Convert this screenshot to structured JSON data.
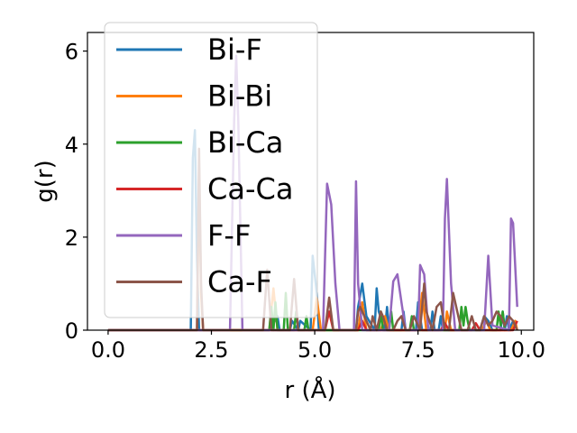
{
  "chart_data": {
    "type": "line",
    "xlabel": "r (Å)",
    "ylabel": "g(r)",
    "xlim": [
      -0.5,
      10.3
    ],
    "ylim": [
      0,
      6.4
    ],
    "xticks": [
      0.0,
      2.5,
      5.0,
      7.5,
      10.0
    ],
    "xtick_labels": [
      "0.0",
      "2.5",
      "5.0",
      "7.5",
      "10.0"
    ],
    "yticks": [
      0,
      2,
      4,
      6
    ],
    "ytick_labels": [
      "0",
      "2",
      "4",
      "6"
    ],
    "grid": false,
    "legend_position": "upper-left",
    "series": [
      {
        "name": "Bi-F",
        "color": "#1f77b4",
        "x": [
          0.0,
          2.0,
          2.05,
          2.1,
          2.15,
          2.2,
          3.9,
          4.1,
          4.15,
          4.4,
          4.45,
          4.6,
          4.65,
          4.9,
          4.95,
          5.05,
          5.1,
          6.0,
          6.05,
          6.15,
          6.25,
          6.45,
          6.5,
          6.55,
          6.7,
          6.75,
          6.8,
          7.1,
          7.15,
          7.2,
          7.45,
          7.5,
          7.6,
          7.8,
          7.85,
          7.9,
          8.0,
          8.05,
          8.1,
          9.0,
          9.1,
          9.2,
          9.3,
          9.5,
          9.55,
          9.6,
          9.65,
          9.7,
          9.8,
          9.9
        ],
        "y": [
          0.0,
          0.0,
          3.7,
          4.3,
          1.5,
          0.0,
          0.0,
          0.3,
          0.0,
          0.0,
          0.2,
          0.0,
          0.2,
          0.0,
          1.6,
          0.8,
          0.0,
          0.0,
          0.5,
          1.0,
          0.3,
          0.0,
          0.9,
          0.4,
          0.0,
          0.5,
          0.0,
          0.0,
          0.4,
          0.0,
          0.0,
          0.6,
          0.0,
          0.0,
          0.4,
          0.0,
          0.0,
          0.3,
          0.0,
          0.0,
          0.3,
          0.2,
          0.0,
          0.0,
          0.4,
          0.0,
          0.3,
          0.0,
          0.2,
          0.0
        ]
      },
      {
        "name": "Bi-Bi",
        "color": "#ff7f0e",
        "x": [
          0.0,
          2.15,
          2.2,
          2.25,
          2.3,
          3.9,
          4.0,
          4.1,
          4.95,
          5.05,
          5.15,
          6.05,
          6.15,
          6.25,
          6.6,
          6.7,
          6.8,
          7.5,
          7.6,
          7.7,
          8.15,
          8.2,
          8.3,
          9.05,
          9.15,
          9.25,
          9.75,
          9.85,
          9.9
        ],
        "y": [
          0.0,
          0.0,
          3.5,
          0.8,
          0.0,
          0.0,
          0.9,
          0.0,
          0.0,
          0.7,
          0.0,
          0.0,
          0.6,
          0.0,
          0.0,
          0.3,
          0.0,
          0.0,
          0.8,
          0.0,
          0.0,
          0.4,
          0.0,
          0.0,
          0.2,
          0.0,
          0.0,
          0.2,
          0.0
        ]
      },
      {
        "name": "Bi-Ca",
        "color": "#2ca02c",
        "x": [
          0.0,
          3.9,
          3.95,
          4.0,
          4.05,
          4.1,
          4.25,
          4.3,
          4.35,
          4.5,
          4.55,
          4.6,
          4.75,
          4.8,
          4.85,
          6.55,
          6.6,
          6.65,
          6.8,
          6.85,
          6.9,
          7.3,
          7.35,
          7.4,
          8.5,
          8.55,
          8.6,
          8.65,
          8.7,
          8.75,
          9.4,
          9.45,
          9.5,
          9.55,
          9.6
        ],
        "y": [
          0.0,
          0.0,
          0.5,
          0.0,
          0.6,
          0.0,
          0.0,
          0.8,
          0.0,
          0.0,
          0.4,
          0.0,
          0.0,
          0.3,
          0.0,
          0.0,
          0.4,
          0.0,
          0.0,
          0.4,
          0.0,
          0.0,
          0.3,
          0.0,
          0.0,
          0.5,
          0.1,
          0.5,
          0.2,
          0.0,
          0.0,
          0.4,
          0.1,
          0.4,
          0.0
        ]
      },
      {
        "name": "Ca-Ca",
        "color": "#d62728",
        "x": [
          0.0,
          5.25,
          5.35,
          5.45,
          6.05,
          6.15,
          6.25,
          8.05,
          8.15,
          8.25,
          8.8,
          8.9,
          9.0,
          9.8,
          9.9
        ],
        "y": [
          0.0,
          0.0,
          0.4,
          0.0,
          0.0,
          0.2,
          0.0,
          0.0,
          0.15,
          0.0,
          0.0,
          0.15,
          0.0,
          0.0,
          0.2
        ]
      },
      {
        "name": "F-F",
        "color": "#9467bd",
        "x": [
          0.0,
          2.95,
          3.05,
          3.1,
          3.15,
          3.25,
          5.2,
          5.3,
          5.4,
          5.5,
          5.6,
          5.95,
          6.0,
          6.05,
          6.15,
          6.8,
          6.9,
          7.0,
          7.1,
          7.2,
          7.5,
          7.55,
          7.65,
          7.75,
          8.1,
          8.15,
          8.2,
          8.3,
          8.4,
          9.1,
          9.2,
          9.3,
          9.7,
          9.75,
          9.8,
          9.9
        ],
        "y": [
          0.0,
          0.0,
          4.5,
          5.9,
          4.5,
          0.0,
          0.0,
          3.15,
          2.7,
          1.0,
          0.0,
          0.0,
          3.2,
          1.0,
          0.0,
          0.0,
          1.05,
          1.2,
          0.6,
          0.0,
          0.0,
          1.4,
          1.2,
          0.0,
          0.0,
          2.4,
          3.25,
          1.0,
          0.0,
          0.0,
          1.6,
          0.1,
          0.0,
          2.4,
          2.3,
          0.5
        ]
      },
      {
        "name": "Ca-F",
        "color": "#8c564b",
        "x": [
          0.0,
          2.15,
          2.2,
          2.25,
          2.3,
          3.75,
          3.85,
          3.95,
          4.4,
          4.5,
          4.6,
          5.25,
          5.35,
          5.45,
          6.0,
          6.05,
          6.1,
          6.2,
          6.35,
          6.4,
          6.5,
          6.6,
          6.65,
          6.75,
          6.9,
          7.0,
          7.1,
          7.2,
          7.3,
          7.4,
          7.55,
          7.65,
          7.7,
          7.85,
          7.95,
          8.05,
          8.15,
          8.25,
          8.35,
          8.45,
          8.55,
          8.7,
          8.8,
          8.9,
          9.0,
          9.1,
          9.2,
          9.3,
          9.4,
          9.5,
          9.6,
          9.7,
          9.8,
          9.9
        ],
        "y": [
          0.0,
          0.0,
          3.9,
          1.0,
          0.0,
          0.0,
          1.3,
          0.0,
          0.0,
          1.1,
          0.0,
          0.0,
          0.7,
          0.0,
          0.0,
          0.4,
          0.5,
          0.3,
          0.0,
          0.3,
          0.0,
          0.4,
          0.3,
          0.0,
          0.0,
          0.2,
          0.3,
          0.0,
          0.0,
          0.3,
          0.0,
          1.0,
          0.4,
          0.0,
          0.5,
          0.6,
          0.0,
          0.0,
          0.8,
          0.4,
          0.0,
          0.0,
          0.3,
          0.0,
          0.0,
          0.3,
          0.1,
          0.2,
          0.4,
          0.3,
          0.1,
          0.3,
          0.2,
          0.0
        ]
      }
    ]
  }
}
